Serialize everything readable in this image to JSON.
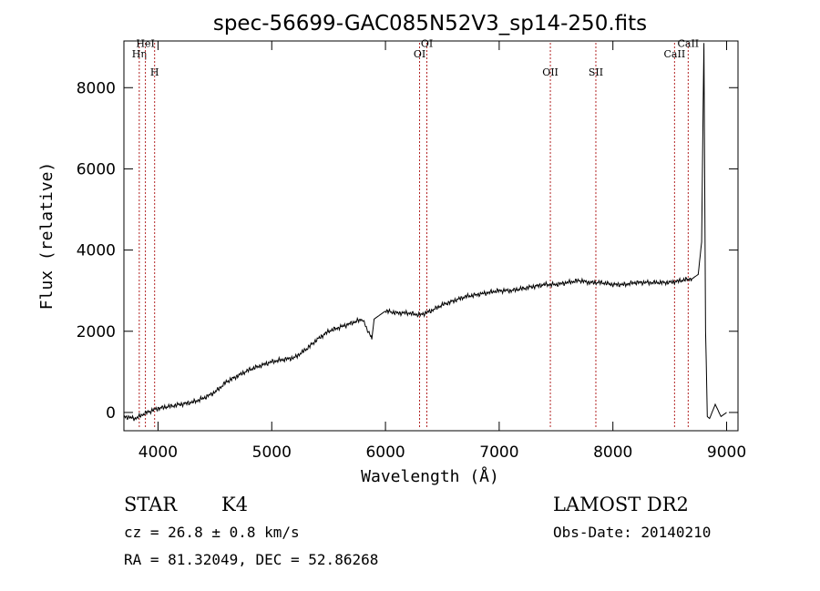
{
  "chart_data": {
    "type": "line",
    "title": "spec-56699-GAC085N52V3_sp14-250.fits",
    "xlabel": "Wavelength (Å)",
    "ylabel": "Flux (relative)",
    "xlim": [
      3700,
      9100
    ],
    "ylim": [
      -450,
      9150
    ],
    "x_ticks": [
      4000,
      5000,
      6000,
      7000,
      8000,
      9000
    ],
    "y_ticks": [
      0,
      2000,
      4000,
      6000,
      8000
    ],
    "grid": false,
    "line_color": "#000000",
    "marker_color": "#b22222",
    "spectral_lines": [
      {
        "label": "Hη",
        "x": 3835,
        "label_y": 8750
      },
      {
        "label": "HeI",
        "x": 3889,
        "label_y": 9000
      },
      {
        "label": "H",
        "x": 3970,
        "label_y": 8300
      },
      {
        "label": "OI",
        "x": 6300,
        "label_y": 8750
      },
      {
        "label": "OI",
        "x": 6364,
        "label_y": 9000
      },
      {
        "label": "OII",
        "x": 7450,
        "label_y": 8300
      },
      {
        "label": "SII",
        "x": 7850,
        "label_y": 8300
      },
      {
        "label": "CaII",
        "x": 8542,
        "label_y": 8750
      },
      {
        "label": "CaII",
        "x": 8662,
        "label_y": 9000
      }
    ],
    "series": [
      {
        "x": [
          3700,
          3800,
          3900,
          4000,
          4100,
          4200,
          4300,
          4400,
          4500,
          4600,
          4700,
          4800,
          4900,
          5000,
          5100,
          5200,
          5300,
          5400,
          5500,
          5600,
          5700,
          5800,
          5880,
          5900,
          5950,
          6000,
          6100,
          6200,
          6300,
          6400,
          6500,
          6600,
          6700,
          6800,
          6900,
          7000,
          7100,
          7200,
          7300,
          7400,
          7500,
          7600,
          7700,
          7800,
          7900,
          8000,
          8100,
          8200,
          8300,
          8400,
          8500,
          8600,
          8700,
          8750,
          8780,
          8800,
          8815,
          8830,
          8850,
          8900,
          8950,
          9000
        ],
        "y": [
          -100,
          -150,
          0,
          100,
          150,
          200,
          250,
          350,
          500,
          750,
          900,
          1050,
          1150,
          1250,
          1300,
          1350,
          1550,
          1800,
          2000,
          2100,
          2200,
          2300,
          1800,
          2300,
          2400,
          2500,
          2450,
          2450,
          2400,
          2500,
          2650,
          2750,
          2850,
          2900,
          2950,
          3000,
          3000,
          3050,
          3100,
          3150,
          3150,
          3200,
          3250,
          3200,
          3200,
          3150,
          3150,
          3200,
          3200,
          3200,
          3200,
          3250,
          3300,
          3400,
          4200,
          9100,
          2000,
          -100,
          -150,
          200,
          -100,
          0
        ]
      }
    ]
  },
  "footer": {
    "class_label": "STAR",
    "subclass": "K4",
    "survey": "LAMOST DR2",
    "cz": "cz = 26.8 ± 0.8 km/s",
    "obs_date": "Obs-Date: 20140210",
    "coords": "RA =  81.32049, DEC =  52.86268"
  }
}
